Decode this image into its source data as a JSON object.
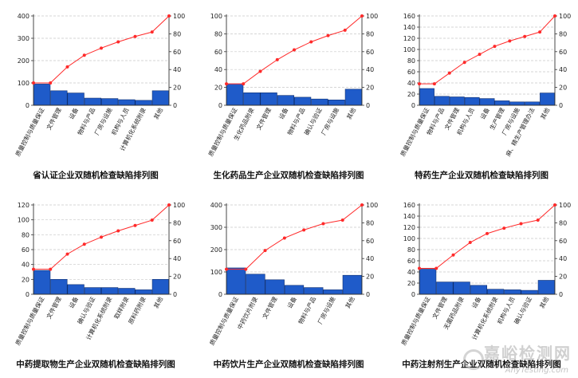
{
  "chart_data": [
    {
      "type": "bar",
      "title": "省认证企业双随机检查缺陷排列图",
      "categories": [
        "质量控制与质量保证",
        "文件管理",
        "设备",
        "物料与产品",
        "厂房与设施",
        "机构与人员",
        "计算机化系统附录",
        "其他"
      ],
      "values": [
        95,
        65,
        55,
        32,
        30,
        25,
        22,
        65
      ],
      "cumulative": [
        25,
        43,
        56,
        64,
        71,
        77,
        82,
        100
      ],
      "ylim": [
        0,
        400
      ],
      "yticks": [
        0,
        100,
        200,
        300,
        400
      ],
      "y2lim": [
        0,
        100
      ],
      "y2ticks": [
        0,
        20,
        40,
        60,
        80,
        100
      ]
    },
    {
      "type": "bar",
      "title": "生化药品生产企业双随机检查缺陷排列图",
      "categories": [
        "质量控制与质量保证",
        "生化药品附录",
        "文件管理",
        "设备",
        "物料与产品",
        "确认与验证",
        "厂房与设施",
        "其他"
      ],
      "values": [
        24,
        14,
        14,
        11,
        9,
        7,
        6,
        18
      ],
      "cumulative": [
        24,
        38,
        51,
        62,
        71,
        78,
        84,
        100
      ],
      "ylim": [
        0,
        100
      ],
      "yticks": [
        0,
        20,
        40,
        60,
        80,
        100
      ],
      "y2lim": [
        0,
        100
      ],
      "y2ticks": [
        0,
        20,
        40,
        60,
        80,
        100
      ]
    },
    {
      "type": "bar",
      "title": "特药生产企业双随机检查缺陷排列图",
      "categories": [
        "质量控制与质量保证",
        "物料与产品",
        "文件管理",
        "机构与人员",
        "设备",
        "生产管理",
        "厂房与设施",
        "麻、精生产管理办法",
        "其他"
      ],
      "values": [
        30,
        16,
        15,
        14,
        12,
        8,
        6,
        6,
        22
      ],
      "cumulative": [
        24,
        36,
        48,
        57,
        66,
        72,
        77,
        82,
        100
      ],
      "ylim": [
        0,
        160
      ],
      "yticks": [
        0,
        20,
        40,
        60,
        80,
        100,
        120,
        140,
        160
      ],
      "y2lim": [
        0,
        100
      ],
      "y2ticks": [
        0,
        20,
        40,
        60,
        80,
        100
      ]
    },
    {
      "type": "bar",
      "title": "中药提取物生产企业双随机检查缺陷排列图",
      "categories": [
        "质量控制与质量保证",
        "文件管理",
        "设备",
        "确认与验证",
        "计算机化系统附录",
        "取样附录",
        "原料药附录",
        "其他"
      ],
      "values": [
        32,
        20,
        13,
        9,
        9,
        8,
        6,
        20
      ],
      "cumulative": [
        28,
        45,
        56,
        64,
        71,
        77,
        83,
        100
      ],
      "ylim": [
        0,
        120
      ],
      "yticks": [
        0,
        20,
        40,
        60,
        80,
        100,
        120
      ],
      "y2lim": [
        0,
        100
      ],
      "y2ticks": [
        0,
        20,
        40,
        60,
        80,
        100
      ]
    },
    {
      "type": "bar",
      "title": "中药饮片生产企业双随机检查缺陷排列图",
      "categories": [
        "质量控制与质量保证",
        "中药饮片附录",
        "文件管理",
        "设备",
        "物料与产品",
        "厂房与设施",
        "其他"
      ],
      "values": [
        118,
        90,
        65,
        40,
        30,
        20,
        85
      ],
      "cumulative": [
        28,
        49,
        63,
        72,
        79,
        83,
        100
      ],
      "ylim": [
        0,
        400
      ],
      "yticks": [
        0,
        100,
        200,
        300,
        400
      ],
      "y2lim": [
        0,
        100
      ],
      "y2ticks": [
        0,
        20,
        40,
        60,
        80,
        100
      ]
    },
    {
      "type": "bar",
      "title": "中药注射剂生产企业双随机检查缺陷排列图",
      "categories": [
        "质量控制与质量保证",
        "文件管理",
        "无菌药品附录",
        "设备",
        "计算机化系统附录",
        "机构与人员",
        "确认与验证",
        "其他"
      ],
      "values": [
        45,
        22,
        22,
        16,
        9,
        8,
        7,
        25
      ],
      "cumulative": [
        29,
        44,
        58,
        68,
        74,
        79,
        83,
        100
      ],
      "ylim": [
        0,
        160
      ],
      "yticks": [
        0,
        20,
        40,
        60,
        80,
        100,
        120,
        140,
        160
      ],
      "y2lim": [
        0,
        100
      ],
      "y2ticks": [
        0,
        20,
        40,
        60,
        80,
        100
      ]
    }
  ],
  "watermark": {
    "main": "嘉峪检测网",
    "sub": "AnyTesting.com"
  },
  "colors": {
    "bar": "#1f5bc9",
    "bar_stroke": "#0d2e70",
    "line": "#ff2a2a",
    "grid": "#c8c8c8",
    "axis": "#333333"
  }
}
